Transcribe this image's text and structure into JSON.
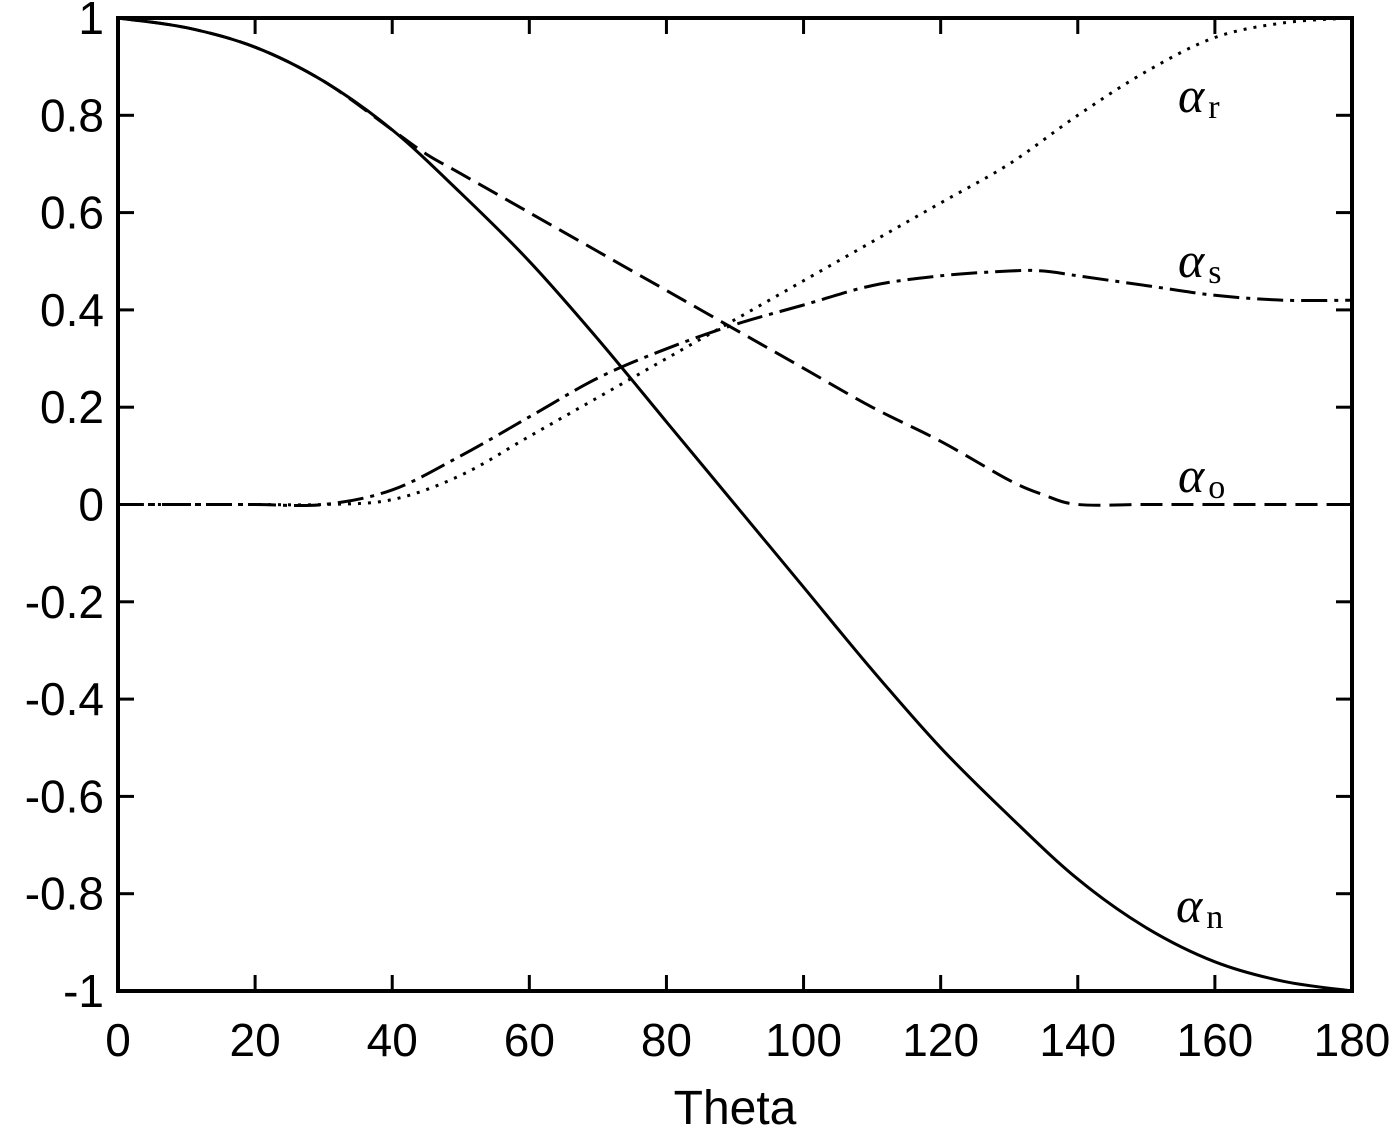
{
  "chart_data": {
    "type": "line",
    "title": "",
    "xlabel": "Theta",
    "ylabel": "",
    "xlim": [
      0,
      180
    ],
    "ylim": [
      -1,
      1
    ],
    "grid": false,
    "legend": "none",
    "x_ticks": [
      0,
      20,
      40,
      60,
      80,
      100,
      120,
      140,
      160,
      180
    ],
    "x_tick_labels": [
      "0",
      "20",
      "40",
      "60",
      "80",
      "100",
      "120",
      "140",
      "160",
      "180"
    ],
    "y_ticks": [
      1,
      0.8,
      0.6,
      0.4,
      0.2,
      0,
      -0.2,
      -0.4,
      -0.6,
      -0.8,
      -1
    ],
    "y_tick_labels": [
      "1",
      "0.8",
      "0.6",
      "0.4",
      "0.2",
      "0",
      "-0.2",
      "-0.4",
      "-0.6",
      "-0.8",
      "-1"
    ],
    "series": [
      {
        "id": "n",
        "label_symbol": "α",
        "label_sub": "n",
        "line_style": "solid",
        "x": [
          0,
          10,
          20,
          30,
          40,
          50,
          60,
          70,
          80,
          90,
          100,
          110,
          120,
          130,
          140,
          150,
          160,
          170,
          180
        ],
        "y": [
          1.0,
          0.98,
          0.94,
          0.87,
          0.77,
          0.64,
          0.5,
          0.34,
          0.17,
          0.0,
          -0.17,
          -0.34,
          -0.5,
          -0.64,
          -0.77,
          -0.87,
          -0.94,
          -0.98,
          -1.0
        ]
      },
      {
        "id": "o",
        "label_symbol": "α",
        "label_sub": "o",
        "line_style": "dashed",
        "x": [
          0,
          10,
          20,
          30,
          40,
          45,
          50,
          60,
          70,
          80,
          90,
          100,
          110,
          120,
          130,
          135,
          140,
          150,
          160,
          170,
          180
        ],
        "y": [
          1.0,
          0.98,
          0.94,
          0.87,
          0.77,
          0.72,
          0.68,
          0.6,
          0.52,
          0.44,
          0.36,
          0.28,
          0.2,
          0.13,
          0.05,
          0.02,
          0.0,
          0.0,
          0.0,
          0.0,
          0.0
        ]
      },
      {
        "id": "r",
        "label_symbol": "α",
        "label_sub": "r",
        "line_style": "dotted",
        "x": [
          0,
          10,
          20,
          30,
          40,
          50,
          60,
          70,
          80,
          90,
          100,
          110,
          120,
          130,
          140,
          150,
          160,
          170,
          180
        ],
        "y": [
          0.0,
          0.0,
          0.0,
          0.0,
          0.01,
          0.06,
          0.14,
          0.22,
          0.3,
          0.38,
          0.46,
          0.54,
          0.62,
          0.7,
          0.8,
          0.89,
          0.96,
          0.99,
          1.0
        ]
      },
      {
        "id": "s",
        "label_symbol": "α",
        "label_sub": "s",
        "line_style": "dashdot",
        "x": [
          0,
          10,
          20,
          30,
          40,
          50,
          60,
          70,
          80,
          90,
          100,
          110,
          120,
          130,
          135,
          140,
          150,
          160,
          170,
          180
        ],
        "y": [
          0.0,
          0.0,
          0.0,
          0.0,
          0.03,
          0.1,
          0.18,
          0.26,
          0.32,
          0.37,
          0.41,
          0.45,
          0.47,
          0.48,
          0.48,
          0.47,
          0.45,
          0.43,
          0.42,
          0.42
        ]
      }
    ]
  }
}
